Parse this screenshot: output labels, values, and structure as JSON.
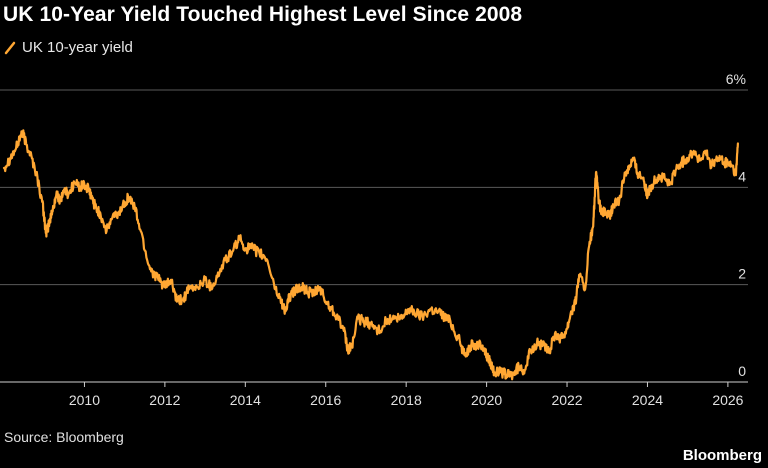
{
  "header": {
    "title": "UK 10-Year Yield Touched Highest Level Since 2008"
  },
  "footer": {
    "source": "Source: Bloomberg",
    "brand": "Bloomberg"
  },
  "colors": {
    "background": "#000000",
    "series": "#ffa733",
    "grid": "#5a5a5a",
    "text": "#e0e0e0"
  },
  "chart_data": {
    "type": "line",
    "title": "UK 10-Year Yield Touched Highest Level Since 2008",
    "xlabel": "",
    "ylabel": "",
    "xlim": [
      2007.9,
      2026.5
    ],
    "ylim": [
      0,
      6
    ],
    "x_ticks": [
      2010,
      2012,
      2014,
      2016,
      2018,
      2020,
      2022,
      2024,
      2026
    ],
    "y_ticks": [
      {
        "value": 0,
        "label": "0"
      },
      {
        "value": 2,
        "label": "2"
      },
      {
        "value": 4,
        "label": "4"
      },
      {
        "value": 6,
        "label": "6%"
      }
    ],
    "grid": "horizontal",
    "legend": "top-left",
    "series": [
      {
        "name": "UK 10-year yield",
        "color": "#ffa733",
        "x": [
          2008.0,
          2008.15,
          2008.3,
          2008.45,
          2008.55,
          2008.65,
          2008.8,
          2008.95,
          2009.05,
          2009.1,
          2009.2,
          2009.3,
          2009.4,
          2009.5,
          2009.6,
          2009.75,
          2009.9,
          2010.0,
          2010.1,
          2010.2,
          2010.3,
          2010.4,
          2010.55,
          2010.7,
          2010.85,
          2011.0,
          2011.1,
          2011.25,
          2011.4,
          2011.6,
          2011.75,
          2011.9,
          2012.0,
          2012.15,
          2012.3,
          2012.45,
          2012.6,
          2012.8,
          2013.0,
          2013.15,
          2013.3,
          2013.5,
          2013.7,
          2013.85,
          2014.0,
          2014.15,
          2014.35,
          2014.55,
          2014.75,
          2014.9,
          2015.0,
          2015.1,
          2015.25,
          2015.4,
          2015.55,
          2015.7,
          2015.85,
          2016.0,
          2016.15,
          2016.3,
          2016.45,
          2016.55,
          2016.65,
          2016.8,
          2016.95,
          2017.1,
          2017.3,
          2017.5,
          2017.7,
          2017.9,
          2018.05,
          2018.2,
          2018.4,
          2018.6,
          2018.8,
          2018.95,
          2019.1,
          2019.3,
          2019.45,
          2019.6,
          2019.75,
          2019.9,
          2020.0,
          2020.1,
          2020.2,
          2020.35,
          2020.5,
          2020.65,
          2020.8,
          2020.95,
          2021.1,
          2021.25,
          2021.4,
          2021.55,
          2021.7,
          2021.85,
          2022.0,
          2022.1,
          2022.2,
          2022.3,
          2022.45,
          2022.55,
          2022.65,
          2022.72,
          2022.78,
          2022.85,
          2022.95,
          2023.05,
          2023.15,
          2023.3,
          2023.45,
          2023.55,
          2023.65,
          2023.75,
          2023.9,
          2024.0,
          2024.1,
          2024.25,
          2024.4,
          2024.55,
          2024.7,
          2024.85,
          2025.0,
          2025.15,
          2025.3,
          2025.45,
          2025.6,
          2025.75,
          2025.9,
          2026.0,
          2026.1,
          2026.2,
          2026.25
        ],
        "values": [
          4.4,
          4.6,
          4.8,
          5.15,
          4.9,
          4.7,
          4.3,
          3.7,
          3.05,
          3.2,
          3.5,
          3.85,
          3.75,
          3.95,
          3.85,
          4.1,
          4.0,
          4.05,
          3.95,
          3.75,
          3.55,
          3.45,
          3.1,
          3.4,
          3.45,
          3.7,
          3.8,
          3.6,
          3.1,
          2.4,
          2.2,
          2.05,
          1.95,
          2.1,
          1.65,
          1.7,
          1.9,
          1.95,
          2.1,
          1.95,
          2.15,
          2.5,
          2.7,
          2.95,
          2.75,
          2.75,
          2.65,
          2.5,
          1.9,
          1.65,
          1.45,
          1.75,
          1.9,
          1.95,
          1.85,
          1.8,
          1.95,
          1.65,
          1.5,
          1.35,
          1.05,
          0.65,
          0.75,
          1.3,
          1.25,
          1.2,
          1.05,
          1.25,
          1.3,
          1.3,
          1.5,
          1.45,
          1.35,
          1.5,
          1.45,
          1.35,
          1.25,
          0.9,
          0.55,
          0.75,
          0.75,
          0.75,
          0.55,
          0.4,
          0.2,
          0.2,
          0.15,
          0.15,
          0.3,
          0.25,
          0.65,
          0.8,
          0.75,
          0.6,
          1.0,
          0.9,
          1.1,
          1.45,
          1.6,
          2.2,
          1.9,
          2.8,
          3.2,
          4.3,
          3.8,
          3.45,
          3.5,
          3.4,
          3.6,
          3.75,
          4.3,
          4.45,
          4.6,
          4.3,
          4.2,
          3.8,
          4.05,
          4.2,
          4.2,
          4.05,
          4.35,
          4.5,
          4.6,
          4.75,
          4.55,
          4.7,
          4.45,
          4.6,
          4.5,
          4.5,
          4.45,
          4.25,
          4.9
        ]
      }
    ]
  }
}
